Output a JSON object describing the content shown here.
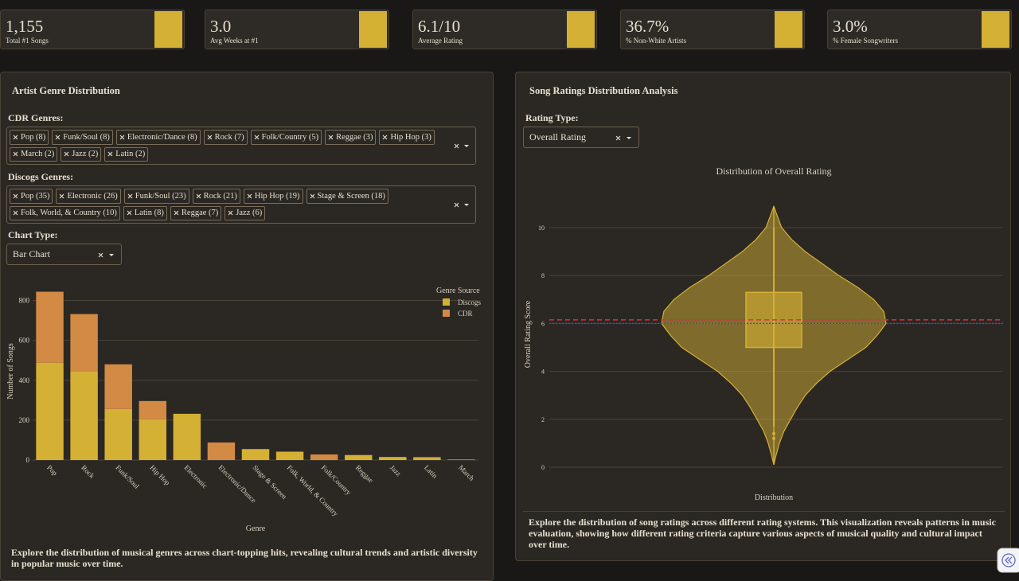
{
  "kpis": [
    {
      "value": "1,155",
      "label": "Total #1 Songs"
    },
    {
      "value": "3.0",
      "label": "Avg Weeks at #1"
    },
    {
      "value": "6.1/10",
      "label": "Average Rating"
    },
    {
      "value": "36.7%",
      "label": "% Non-White Artists"
    },
    {
      "value": "3.0%",
      "label": "% Female Songwriters"
    }
  ],
  "genre_panel": {
    "title": "Artist Genre Distribution",
    "cdr_label": "CDR Genres:",
    "cdr_tags": [
      "Pop (8)",
      "Funk/Soul (8)",
      "Electronic/Dance (8)",
      "Rock (7)",
      "Folk/Country (5)",
      "Reggae (3)",
      "Hip Hop (3)",
      "March (2)",
      "Jazz (2)",
      "Latin (2)"
    ],
    "discogs_label": "Discogs Genres:",
    "discogs_tags": [
      "Pop (35)",
      "Electronic (26)",
      "Funk/Soul (23)",
      "Rock (21)",
      "Hip Hop (19)",
      "Stage & Screen (18)",
      "Folk, World, & Country (10)",
      "Latin (8)",
      "Reggae (7)",
      "Jazz (6)"
    ],
    "chart_type_label": "Chart Type:",
    "chart_type": "Bar Chart",
    "description": "Explore the distribution of musical genres across chart-topping hits, revealing cultural trends and artistic diversity in popular music over time."
  },
  "rating_panel": {
    "title": "Song Ratings Distribution Analysis",
    "rating_type_label": "Rating Type:",
    "rating_type": "Overall Rating",
    "description": "Explore the distribution of song ratings across different rating systems. This visualization reveals patterns in music evaluation, showing how different rating criteria capture various aspects of musical quality and cultural impact over time."
  },
  "chart_data": [
    {
      "type": "bar",
      "stacked": true,
      "categories": [
        "Pop",
        "Rock",
        "Funk/Soul",
        "Hip Hop",
        "Electronic",
        "Electronic/Dance",
        "Stage & Screen",
        "Folk, World, & Country",
        "Folk/Country",
        "Reggae",
        "Jazz",
        "Latin",
        "March"
      ],
      "series": [
        {
          "name": "Discogs",
          "color": "#d4b035",
          "values": [
            488,
            446,
            256,
            204,
            232,
            0,
            55,
            42,
            0,
            25,
            12,
            10,
            0
          ]
        },
        {
          "name": "CDR",
          "color": "#d28a45",
          "values": [
            356,
            286,
            224,
            92,
            0,
            88,
            0,
            0,
            28,
            0,
            4,
            5,
            3
          ]
        }
      ],
      "xlabel": "Genre",
      "ylabel": "Number of Songs",
      "legend_title": "Genre Source",
      "legend": "top-right",
      "ylim": [
        0,
        890
      ],
      "yticks": [
        0,
        200,
        400,
        600,
        800
      ],
      "grid": true
    },
    {
      "type": "violin",
      "title": "Distribution of Overall Rating",
      "xlabel": "Distribution",
      "ylabel": "Overall Rating Score",
      "color": "#d4b035",
      "ylim": [
        -0.43,
        11.03
      ],
      "yticks": [
        0,
        2,
        4,
        6,
        8,
        10
      ],
      "grid": true,
      "kde": {
        "y": [
          0.1,
          0.5,
          1,
          1.5,
          2,
          2.5,
          3,
          3.5,
          4,
          4.5,
          5,
          5.5,
          6,
          6.5,
          7,
          7.5,
          8,
          8.5,
          9,
          9.5,
          10,
          10.5,
          10.9
        ],
        "density": [
          0,
          0.02,
          0.05,
          0.09,
          0.15,
          0.21,
          0.28,
          0.38,
          0.5,
          0.66,
          0.82,
          0.92,
          1,
          0.98,
          0.89,
          0.75,
          0.58,
          0.43,
          0.28,
          0.16,
          0.07,
          0.03,
          0
        ]
      },
      "box": {
        "q1": 5.0,
        "q3": 7.3,
        "lower": 1.7,
        "upper": 10
      },
      "outliers": [
        1.4,
        1.2
      ],
      "reference_lines": [
        {
          "value": 6.15,
          "color": "#e03030",
          "style": "dashed"
        },
        {
          "value": 6.0,
          "color": "#3050d0",
          "style": "dotted"
        }
      ]
    }
  ]
}
